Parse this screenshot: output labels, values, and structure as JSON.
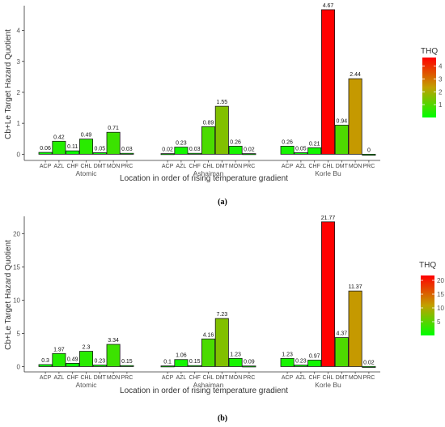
{
  "figure": {
    "panels": [
      {
        "caption": "(a)",
        "chart_data": {
          "type": "bar",
          "ylabel": "Cb+Le Target Hazard Quotient",
          "xlabel": "Location in order of rising temperature gradient",
          "facets": [
            "Atomic",
            "Ashaiman",
            "Korle Bu"
          ],
          "categories": [
            "ACP",
            "AZL",
            "CHF",
            "CHL",
            "DMT",
            "MON",
            "PRC"
          ],
          "series": [
            {
              "values": [
                0.06,
                0.42,
                0.11,
                0.49,
                0.05,
                0.71,
                0.03
              ],
              "labels": [
                "0.06",
                "0.42",
                "0.11",
                "0.49",
                "0.05",
                "0.71",
                "0.03"
              ]
            },
            {
              "values": [
                0.02,
                0.23,
                0.03,
                0.89,
                1.55,
                0.26,
                0.02
              ],
              "labels": [
                "0.02",
                "0.23",
                "0.03",
                "0.89",
                "1.55",
                "0.26",
                "0.02"
              ]
            },
            {
              "values": [
                0.26,
                0.05,
                0.21,
                4.67,
                0.94,
                2.44,
                0
              ],
              "labels": [
                "0.26",
                "0.05",
                "0.21",
                "4.67",
                "0.94",
                "2.44",
                "0"
              ]
            }
          ],
          "ylim": [
            -0.2,
            4.8
          ],
          "yticks": [
            0,
            1,
            2,
            3,
            4
          ],
          "legend": {
            "title": "THQ",
            "ticks": [
              1,
              2,
              3,
              4
            ],
            "range": [
              0,
              4.67
            ],
            "position": "right"
          },
          "colors": {
            "low": "#00ff00",
            "mid": "#c2a000",
            "high": "#ff0000"
          }
        }
      },
      {
        "caption": "(b)",
        "chart_data": {
          "type": "bar",
          "ylabel": "Cb+Le Target Hazard Quotient",
          "xlabel": "Location in order of rising temperature gradient",
          "facets": [
            "Atomic",
            "Ashaiman",
            "Korle Bu"
          ],
          "categories": [
            "ACP",
            "AZL",
            "CHF",
            "CHL",
            "DMT",
            "MON",
            "PRC"
          ],
          "series": [
            {
              "values": [
                0.3,
                1.97,
                0.49,
                2.3,
                0.23,
                3.34,
                0.15
              ],
              "labels": [
                "0.3",
                "1.97",
                "0.49",
                "2.3",
                "0.23",
                "3.34",
                "0.15"
              ]
            },
            {
              "values": [
                0.1,
                1.06,
                0.15,
                4.16,
                7.23,
                1.23,
                0.09
              ],
              "labels": [
                "0.1",
                "1.06",
                "0.15",
                "4.16",
                "7.23",
                "1.23",
                "0.09"
              ]
            },
            {
              "values": [
                1.23,
                0.23,
                0.97,
                21.77,
                4.37,
                11.37,
                0.02
              ],
              "labels": [
                "1.23",
                "0.23",
                "0.97",
                "21.77",
                "4.37",
                "11.37",
                "0.02"
              ]
            }
          ],
          "ylim": [
            -0.8,
            22.6
          ],
          "yticks": [
            0,
            5,
            10,
            15,
            20
          ],
          "legend": {
            "title": "THQ",
            "ticks": [
              5,
              10,
              15,
              20
            ],
            "range": [
              0,
              21.77
            ],
            "position": "right"
          },
          "colors": {
            "low": "#00ff00",
            "mid": "#c2a000",
            "high": "#ff0000"
          }
        }
      }
    ]
  }
}
